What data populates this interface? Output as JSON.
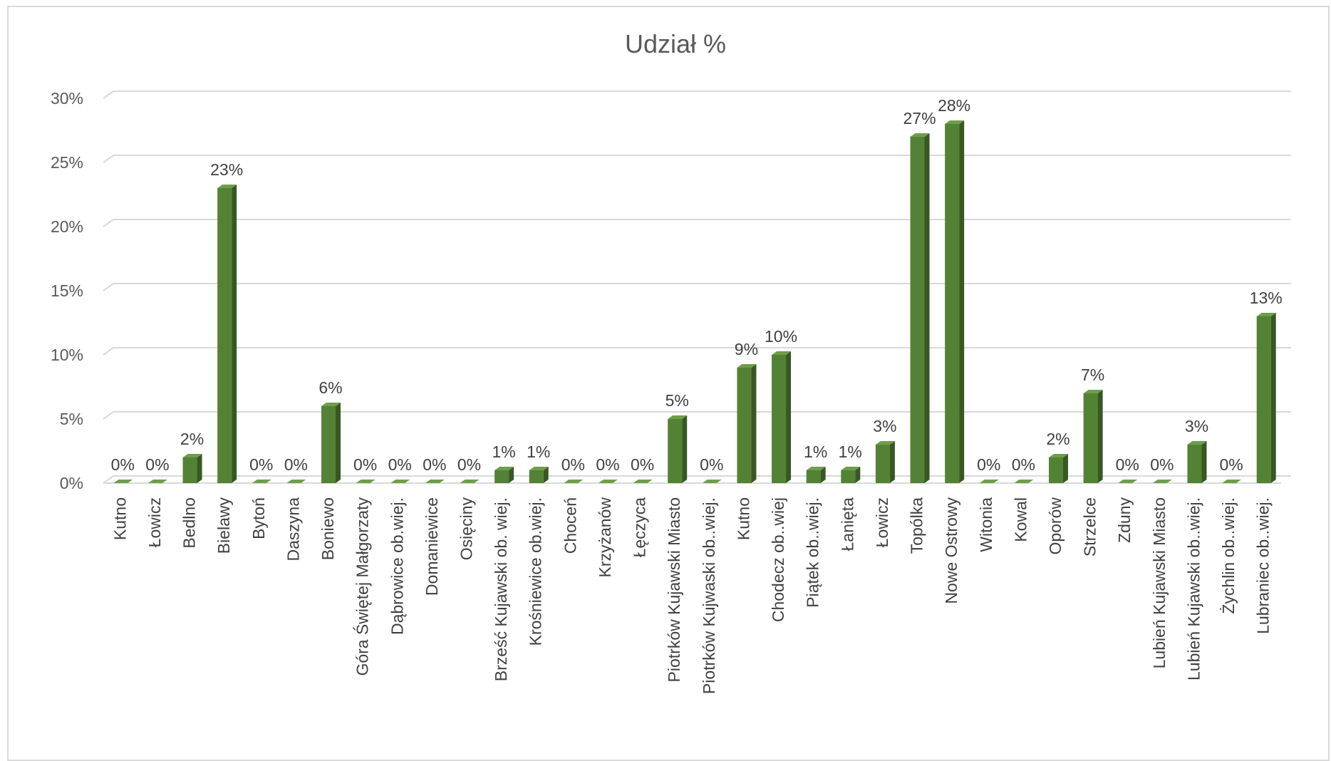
{
  "chart_data": {
    "type": "bar",
    "title": "Udział %",
    "xlabel": "",
    "ylabel": "",
    "ylim": [
      0,
      30
    ],
    "yticks": [
      "0%",
      "5%",
      "10%",
      "15%",
      "20%",
      "25%",
      "30%"
    ],
    "grid": true,
    "legend": "none",
    "categories": [
      "Kutno",
      "Łowicz",
      "Bedlno",
      "Bielawy",
      "Bytoń",
      "Daszyna",
      "Boniewo",
      "Góra Świętej Małgorzaty",
      "Dąbrowice ob.wiej.",
      "Domaniewice",
      "Osięciny",
      "Brześć Kujawski ob. wiej.",
      "Krośniewice ob.wiej.",
      "Choceń",
      "Krzyżanów",
      "Łęczyca",
      "Piotrków Kujawski Miasto",
      "Piotrków Kujwaski ob..wiej.",
      "Kutno",
      "Chodecz ob..wiej",
      "Piątek ob..wiej.",
      "Łanięta",
      "Łowicz",
      "Topólka",
      "Nowe Ostrowy",
      "Witonia",
      "Kowal",
      "Oporów",
      "Strzelce",
      "Zduny",
      "Lubień Kujawski Miasto",
      "Lubień Kujawski ob..wiej.",
      "Żychlin ob..wiej.",
      "Lubraniec ob..wiej."
    ],
    "values": [
      0,
      0,
      2,
      23,
      0,
      0,
      6,
      0,
      0,
      0,
      0,
      1,
      1,
      0,
      0,
      0,
      5,
      0,
      9,
      10,
      1,
      1,
      3,
      27,
      28,
      0,
      0,
      2,
      7,
      0,
      0,
      3,
      0,
      13
    ],
    "labels": [
      "0%",
      "0%",
      "2%",
      "23%",
      "0%",
      "0%",
      "6%",
      "0%",
      "0%",
      "0%",
      "0%",
      "1%",
      "1%",
      "0%",
      "0%",
      "0%",
      "5%",
      "0%",
      "9%",
      "10%",
      "1%",
      "1%",
      "3%",
      "27%",
      "28%",
      "0%",
      "0%",
      "2%",
      "7%",
      "0%",
      "0%",
      "3%",
      "0%",
      "13%"
    ],
    "colors": {
      "bar_front": "#548235",
      "bar_side": "#385723",
      "bar_top": "#6f9e4a",
      "grid": "#d9d9d9"
    }
  }
}
